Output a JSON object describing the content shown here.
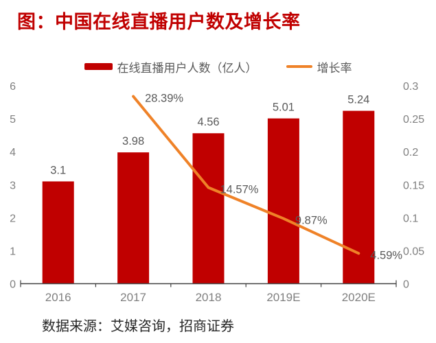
{
  "title": "图：中国在线直播用户数及增长率",
  "legend": {
    "bars": "在线直播用户人数（亿人）",
    "line": "增长率"
  },
  "source": "数据来源：艾媒咨询，招商证券",
  "colors": {
    "title": "#c00000",
    "bar": "#c00000",
    "line": "#ef8228",
    "data_label": "#595959",
    "axis_label": "#7f7f7f",
    "axis_line": "#404040"
  },
  "chart_data": {
    "type": "bar+line",
    "categories": [
      "2016",
      "2017",
      "2018",
      "2019E",
      "2020E"
    ],
    "series": [
      {
        "name": "在线直播用户人数（亿人）",
        "type": "bar",
        "axis": "left",
        "values": [
          3.1,
          3.98,
          4.56,
          5.01,
          5.24
        ],
        "labels": [
          "3.1",
          "3.98",
          "4.56",
          "5.01",
          "5.24"
        ]
      },
      {
        "name": "增长率",
        "type": "line",
        "axis": "right",
        "values": [
          null,
          0.2839,
          0.1457,
          0.0987,
          0.0459
        ],
        "labels": [
          null,
          "28.39%",
          "14.57%",
          "9.87%",
          "4.59%"
        ]
      }
    ],
    "left_axis": {
      "min": 0,
      "max": 6,
      "ticks": [
        "0",
        "1",
        "2",
        "3",
        "4",
        "5",
        "6"
      ]
    },
    "right_axis": {
      "min": 0,
      "max": 0.3,
      "ticks": [
        "0",
        "0.05",
        "0.1",
        "0.15",
        "0.2",
        "0.25",
        "0.3"
      ]
    },
    "grid": false,
    "legend_position": "top"
  }
}
